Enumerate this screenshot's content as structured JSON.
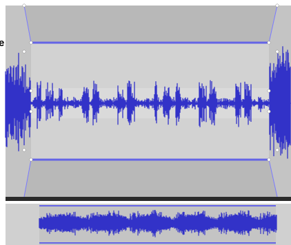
{
  "screen": {
    "partial_label": "e"
  }
}
